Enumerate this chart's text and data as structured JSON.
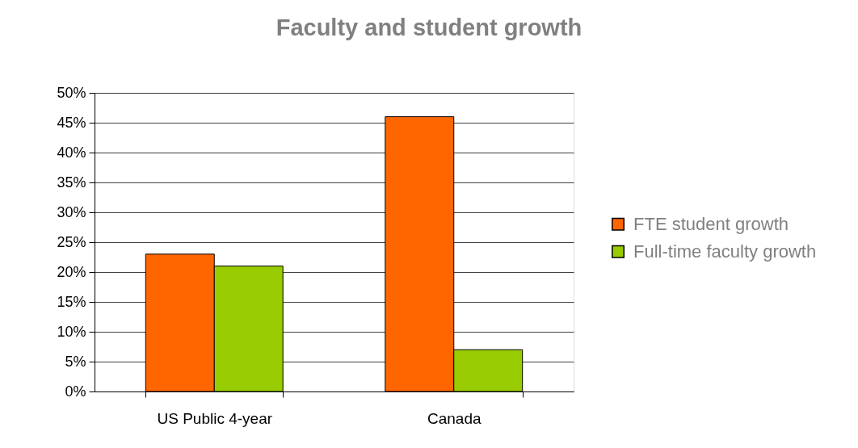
{
  "chart_data": {
    "type": "bar",
    "title": "Faculty and student growth",
    "categories": [
      "US Public 4-year",
      "Canada"
    ],
    "series": [
      {
        "name": "FTE student growth",
        "color": "#ff6600",
        "values": [
          23,
          46
        ]
      },
      {
        "name": "Full-time faculty growth",
        "color": "#99cc00",
        "values": [
          21,
          7
        ]
      }
    ],
    "ylim": [
      0,
      50
    ],
    "yticks": [
      {
        "value": 0,
        "label": "0%"
      },
      {
        "value": 5,
        "label": "5%"
      },
      {
        "value": 10,
        "label": "10%"
      },
      {
        "value": 15,
        "label": "15%"
      },
      {
        "value": 20,
        "label": "20%"
      },
      {
        "value": 25,
        "label": "25%"
      },
      {
        "value": 30,
        "label": "30%"
      },
      {
        "value": 35,
        "label": "35%"
      },
      {
        "value": 40,
        "label": "40%"
      },
      {
        "value": 45,
        "label": "45%"
      },
      {
        "value": 50,
        "label": "50%"
      }
    ],
    "grid": "y",
    "legend": "right"
  }
}
